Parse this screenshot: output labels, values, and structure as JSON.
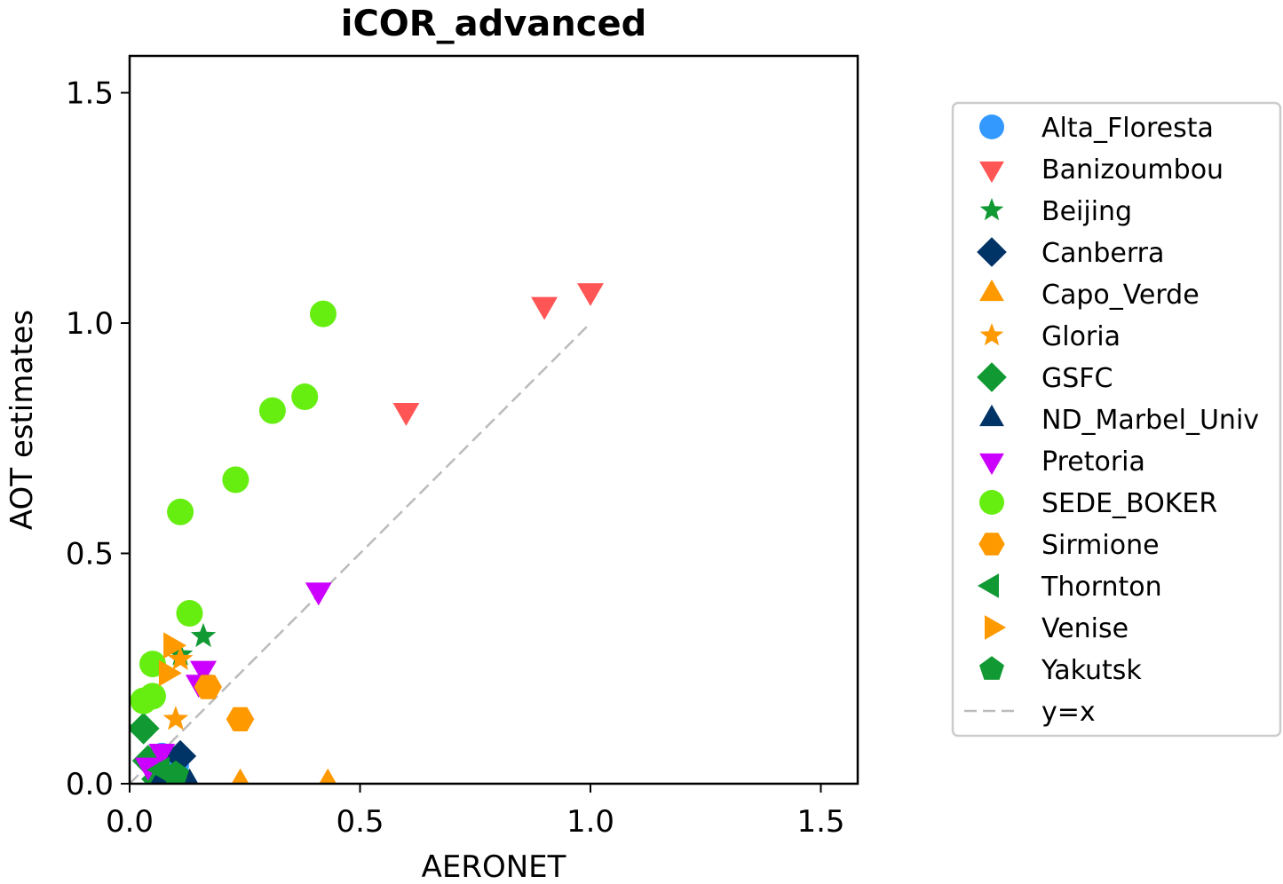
{
  "chart_data": {
    "type": "scatter",
    "title": "iCOR_advanced",
    "xlabel": "AERONET",
    "ylabel": "AOT estimates",
    "xlim": [
      0,
      1.58
    ],
    "ylim": [
      0,
      1.58
    ],
    "xticks": [
      0.0,
      0.5,
      1.0,
      1.5
    ],
    "yticks": [
      0.0,
      0.5,
      1.0,
      1.5
    ],
    "xtick_labels": [
      "0.0",
      "0.5",
      "1.0",
      "1.5"
    ],
    "ytick_labels": [
      "0.0",
      "0.5",
      "1.0",
      "1.5"
    ],
    "grid": false,
    "legend_position": "outside-right",
    "series": [
      {
        "name": "Alta_Floresta",
        "marker": "circle",
        "color": "#3399ff",
        "x": [
          0.07,
          0.1,
          0.06
        ],
        "y": [
          0.06,
          0.04,
          0.05
        ]
      },
      {
        "name": "Banizoumbou",
        "marker": "triangle-down",
        "color": "#ff5555",
        "x": [
          1.0,
          0.9,
          0.6
        ],
        "y": [
          1.07,
          1.04,
          0.81
        ]
      },
      {
        "name": "Beijing",
        "marker": "star",
        "color": "#119933",
        "x": [
          0.16,
          0.11
        ],
        "y": [
          0.32,
          0.28
        ]
      },
      {
        "name": "Canberra",
        "marker": "diamond",
        "color": "#003366",
        "x": [
          0.11,
          0.05
        ],
        "y": [
          0.06,
          0.04
        ]
      },
      {
        "name": "Capo_Verde",
        "marker": "triangle-up",
        "color": "#ff9900",
        "x": [
          0.24,
          0.43
        ],
        "y": [
          0.0,
          0.0
        ]
      },
      {
        "name": "Gloria",
        "marker": "star",
        "color": "#ff9900",
        "x": [
          0.1,
          0.11
        ],
        "y": [
          0.14,
          0.27
        ]
      },
      {
        "name": "GSFC",
        "marker": "diamond",
        "color": "#119933",
        "x": [
          0.03,
          0.04,
          0.06,
          0.1
        ],
        "y": [
          0.12,
          0.05,
          0.01,
          0.01
        ]
      },
      {
        "name": "ND_Marbel_Univ",
        "marker": "triangle-up",
        "color": "#003366",
        "x": [
          0.13,
          0.07
        ],
        "y": [
          0.0,
          0.01
        ]
      },
      {
        "name": "Pretoria",
        "marker": "triangle-down",
        "color": "#cc00ff",
        "x": [
          0.41,
          0.16,
          0.15,
          0.07,
          0.04
        ],
        "y": [
          0.42,
          0.25,
          0.22,
          0.07,
          0.04
        ]
      },
      {
        "name": "SEDE_BOKER",
        "marker": "circle",
        "color": "#66ee11",
        "x": [
          0.42,
          0.38,
          0.31,
          0.23,
          0.11,
          0.13,
          0.05,
          0.05,
          0.03
        ],
        "y": [
          1.02,
          0.84,
          0.81,
          0.66,
          0.59,
          0.37,
          0.26,
          0.19,
          0.18
        ]
      },
      {
        "name": "Sirmione",
        "marker": "hexagon",
        "color": "#ff9900",
        "x": [
          0.17,
          0.24
        ],
        "y": [
          0.21,
          0.14
        ]
      },
      {
        "name": "Thornton",
        "marker": "triangle-left",
        "color": "#119933",
        "x": [
          0.07
        ],
        "y": [
          0.03
        ]
      },
      {
        "name": "Venise",
        "marker": "triangle-right",
        "color": "#ff9900",
        "x": [
          0.09,
          0.08
        ],
        "y": [
          0.3,
          0.24
        ]
      },
      {
        "name": "Yakutsk",
        "marker": "pentagon",
        "color": "#119933",
        "x": [
          0.1
        ],
        "y": [
          0.02
        ]
      }
    ],
    "reference_line": {
      "name": "y=x",
      "x": [
        0.0,
        1.0
      ],
      "y": [
        0.0,
        1.0
      ],
      "color": "#bbbbbb",
      "style": "dashed"
    }
  }
}
